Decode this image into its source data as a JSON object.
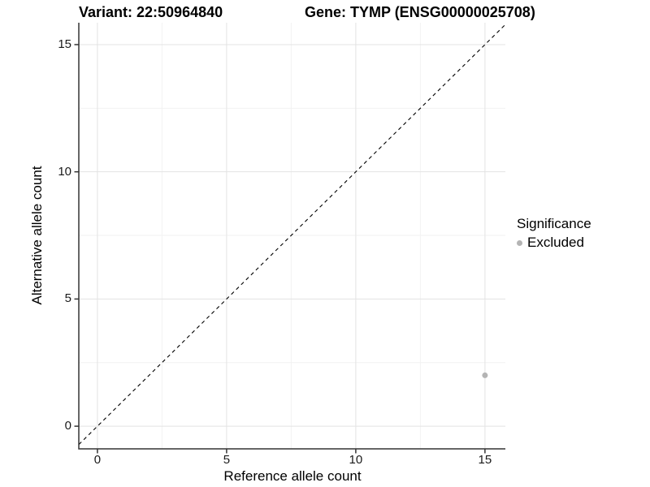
{
  "chart_data": {
    "type": "scatter",
    "titles": {
      "left": "Variant: 22:50964840",
      "right": "Gene: TYMP (ENSG00000025708)"
    },
    "xlabel": "Reference allele count",
    "ylabel": "Alternative allele count",
    "xlim": [
      -0.72,
      15.79
    ],
    "ylim": [
      -0.89,
      15.86
    ],
    "x_ticks": [
      0,
      5,
      10,
      15
    ],
    "y_ticks": [
      0,
      5,
      10,
      15
    ],
    "x_minor_ticks": [
      2.5,
      7.5,
      12.5
    ],
    "y_minor_ticks": [
      2.5,
      7.5,
      12.5
    ],
    "grid": "major+minor",
    "series": [
      {
        "name": "Excluded",
        "color": "#b4b4b4",
        "points": [
          {
            "x": 15,
            "y": 2
          }
        ]
      }
    ],
    "reference_line": {
      "slope": 1,
      "intercept": 0,
      "style": "dashed",
      "color": "#000000"
    },
    "legend": {
      "title": "Significance",
      "position": "right",
      "entries": [
        {
          "label": "Excluded",
          "color": "#b4b4b4",
          "marker": "circle"
        }
      ]
    }
  },
  "colors": {
    "background": "#ffffff",
    "grid_major": "#e3e3e3",
    "grid_minor": "#f2f2f2",
    "axis_line": "#333333",
    "tick_mark": "#333333",
    "text": "#000000"
  }
}
